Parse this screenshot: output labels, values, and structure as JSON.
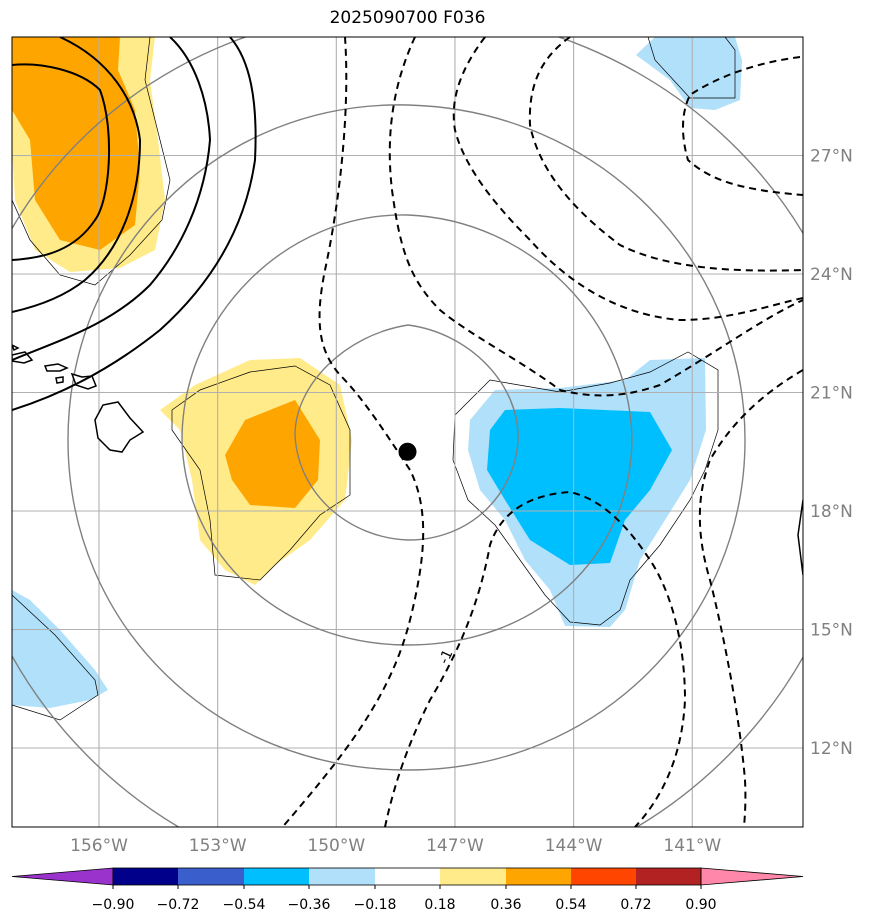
{
  "title": "2025090700 F036",
  "storm_marker": {
    "lon": -148.2,
    "lat": 19.5
  },
  "map_extent": {
    "lon_min": -158.2,
    "lon_max": -138.2,
    "lat_min": 10.0,
    "lat_max": 30.0
  },
  "lon_ticks": [
    {
      "value": -156,
      "label": "156°W"
    },
    {
      "value": -153,
      "label": "153°W"
    },
    {
      "value": -150,
      "label": "150°W"
    },
    {
      "value": -147,
      "label": "147°W"
    },
    {
      "value": -144,
      "label": "144°W"
    },
    {
      "value": -141,
      "label": "141°W"
    }
  ],
  "lat_ticks": [
    {
      "value": 27,
      "label": "27°N"
    },
    {
      "value": 24,
      "label": "24°N"
    },
    {
      "value": 21,
      "label": "21°N"
    },
    {
      "value": 18,
      "label": "18°N"
    },
    {
      "value": 15,
      "label": "15°N"
    },
    {
      "value": 12,
      "label": "12°N"
    }
  ],
  "colorbar": {
    "labels": [
      "−0.90",
      "−0.72",
      "−0.54",
      "−0.36",
      "−0.18",
      "0.18",
      "0.36",
      "0.54",
      "0.72",
      "0.90"
    ],
    "low_extend_color": "#9933cc",
    "high_extend_color": "#ff88aa",
    "colors": [
      "#9933cc",
      "#00008b",
      "#3a5fcd",
      "#00bfff",
      "#b0e0fa",
      "#ffffff",
      "#ffeb8a",
      "#ffa500",
      "#ff4500",
      "#b22222",
      "#ff88aa"
    ]
  },
  "contour_label": "-1",
  "colors": {
    "grid": "#b0b0b0",
    "ring": "#808080",
    "coast": "#000000",
    "warm_light": "#ffeb8a",
    "warm_dark": "#ffa500",
    "cool_light": "#b0e0fa",
    "cool_dark": "#00bfff"
  }
}
